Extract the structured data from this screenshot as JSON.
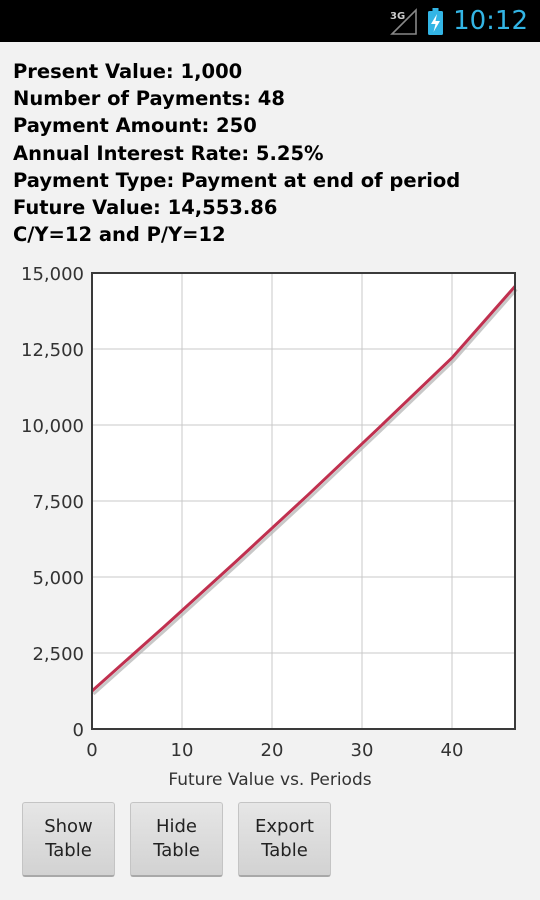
{
  "status_bar": {
    "network_label": "3G",
    "time": "10:12",
    "icons": [
      "signal-icon",
      "battery-charging-icon"
    ],
    "accent_color": "#33b5e5"
  },
  "summary": {
    "present_value": "Present Value: 1,000",
    "number_of_payments": "Number of Payments: 48",
    "payment_amount": "Payment Amount: 250",
    "annual_interest_rate": "Annual Interest Rate: 5.25%",
    "payment_type": "Payment Type: Payment at end of period",
    "future_value": "Future Value: 14,553.86",
    "compounding": "C/Y=12 and P/Y=12"
  },
  "chart_data": {
    "type": "line",
    "title": "",
    "xlabel": "Future Value vs. Periods",
    "ylabel": "",
    "xlim": [
      0,
      47
    ],
    "ylim": [
      0,
      15000
    ],
    "x_ticks": [
      0,
      10,
      20,
      30,
      40
    ],
    "x_tick_labels": [
      "0",
      "10",
      "20",
      "30",
      "40"
    ],
    "y_ticks": [
      0,
      2500,
      5000,
      7500,
      10000,
      12500,
      15000
    ],
    "y_tick_labels": [
      "0",
      "2,500",
      "5,000",
      "7,500",
      "10,000",
      "12,500",
      "15,000"
    ],
    "grid": true,
    "legend": "none",
    "line_color": "#c0304f",
    "series": [
      {
        "values_x": [
          0,
          8,
          16,
          24,
          32,
          40,
          47
        ],
        "values_y": [
          1250,
          3360,
          5510,
          7700,
          9940,
          12210,
          14560
        ]
      }
    ]
  },
  "buttons": {
    "show_table": [
      "Show",
      "Table"
    ],
    "hide_table": [
      "Hide",
      "Table"
    ],
    "export_table": [
      "Export",
      "Table"
    ]
  }
}
